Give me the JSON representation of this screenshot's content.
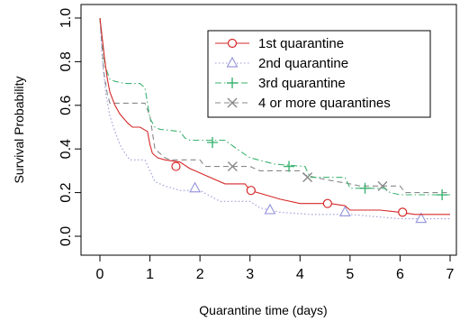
{
  "chart_data": {
    "type": "line",
    "title": "",
    "xlabel": "Quarantine time (days)",
    "ylabel": "Survival Probability",
    "xlim": [
      0,
      7
    ],
    "ylim": [
      0,
      1
    ],
    "xticks": [
      "0",
      "1",
      "2",
      "3",
      "4",
      "5",
      "6",
      "7"
    ],
    "yticks": [
      "0.0",
      "0.2",
      "0.4",
      "0.6",
      "0.8",
      "1.0"
    ],
    "grid": false,
    "legend_position": "top-right",
    "series": [
      {
        "name": "1st quarantine",
        "color": "#d62728",
        "dash": "solid",
        "marker": "circle",
        "points": [
          [
            0,
            1.0
          ],
          [
            0.05,
            0.9
          ],
          [
            0.1,
            0.8
          ],
          [
            0.15,
            0.72
          ],
          [
            0.2,
            0.66
          ],
          [
            0.3,
            0.6
          ],
          [
            0.4,
            0.56
          ],
          [
            0.55,
            0.52
          ],
          [
            0.65,
            0.5
          ],
          [
            0.8,
            0.5
          ],
          [
            0.95,
            0.48
          ],
          [
            1.0,
            0.42
          ],
          [
            1.05,
            0.38
          ],
          [
            1.15,
            0.36
          ],
          [
            1.3,
            0.35
          ],
          [
            1.6,
            0.34
          ],
          [
            1.8,
            0.31
          ],
          [
            1.9,
            0.3
          ],
          [
            2.1,
            0.28
          ],
          [
            2.5,
            0.24
          ],
          [
            2.9,
            0.24
          ],
          [
            3.0,
            0.21
          ],
          [
            3.3,
            0.19
          ],
          [
            3.6,
            0.17
          ],
          [
            4.0,
            0.15
          ],
          [
            4.6,
            0.15
          ],
          [
            4.9,
            0.14
          ],
          [
            5.0,
            0.12
          ],
          [
            5.6,
            0.12
          ],
          [
            6.0,
            0.11
          ],
          [
            6.3,
            0.1
          ],
          [
            7.0,
            0.1
          ]
        ],
        "markers": [
          [
            1.52,
            0.32
          ],
          [
            3.02,
            0.21
          ],
          [
            4.55,
            0.15
          ],
          [
            6.05,
            0.11
          ]
        ]
      },
      {
        "name": "2nd quarantine",
        "color": "#9999dd",
        "dash": "dotted",
        "marker": "triangle",
        "points": [
          [
            0,
            1.0
          ],
          [
            0.05,
            0.8
          ],
          [
            0.12,
            0.65
          ],
          [
            0.2,
            0.55
          ],
          [
            0.3,
            0.48
          ],
          [
            0.4,
            0.42
          ],
          [
            0.5,
            0.38
          ],
          [
            0.6,
            0.35
          ],
          [
            0.9,
            0.35
          ],
          [
            1.0,
            0.3
          ],
          [
            1.1,
            0.25
          ],
          [
            1.3,
            0.23
          ],
          [
            1.6,
            0.21
          ],
          [
            2.0,
            0.21
          ],
          [
            2.4,
            0.16
          ],
          [
            3.0,
            0.16
          ],
          [
            3.2,
            0.13
          ],
          [
            3.6,
            0.11
          ],
          [
            4.2,
            0.1
          ],
          [
            5.0,
            0.1
          ],
          [
            5.5,
            0.09
          ],
          [
            6.0,
            0.08
          ],
          [
            7.0,
            0.08
          ]
        ],
        "markers": [
          [
            1.9,
            0.22
          ],
          [
            3.4,
            0.12
          ],
          [
            4.9,
            0.11
          ],
          [
            6.42,
            0.08
          ]
        ]
      },
      {
        "name": "3rd quarantine",
        "color": "#3cb371",
        "dash": "dashdot",
        "marker": "plus",
        "points": [
          [
            0,
            1.0
          ],
          [
            0.1,
            0.78
          ],
          [
            0.2,
            0.72
          ],
          [
            0.3,
            0.71
          ],
          [
            0.5,
            0.7
          ],
          [
            0.8,
            0.7
          ],
          [
            0.9,
            0.68
          ],
          [
            1.0,
            0.54
          ],
          [
            1.1,
            0.5
          ],
          [
            1.2,
            0.49
          ],
          [
            1.6,
            0.48
          ],
          [
            1.7,
            0.45
          ],
          [
            1.8,
            0.44
          ],
          [
            2.5,
            0.44
          ],
          [
            2.8,
            0.39
          ],
          [
            3.0,
            0.36
          ],
          [
            3.5,
            0.33
          ],
          [
            4.1,
            0.32
          ],
          [
            4.2,
            0.27
          ],
          [
            4.9,
            0.27
          ],
          [
            5.0,
            0.22
          ],
          [
            5.7,
            0.22
          ],
          [
            5.8,
            0.2
          ],
          [
            6.0,
            0.19
          ],
          [
            7.0,
            0.19
          ]
        ],
        "markers": [
          [
            2.25,
            0.43
          ],
          [
            3.78,
            0.32
          ],
          [
            5.3,
            0.22
          ],
          [
            6.84,
            0.19
          ]
        ]
      },
      {
        "name": "4 or more quarantines",
        "color": "#888888",
        "dash": "dashed",
        "marker": "x",
        "points": [
          [
            0,
            1.0
          ],
          [
            0.08,
            0.75
          ],
          [
            0.15,
            0.65
          ],
          [
            0.2,
            0.61
          ],
          [
            0.9,
            0.61
          ],
          [
            1.0,
            0.55
          ],
          [
            1.1,
            0.4
          ],
          [
            1.3,
            0.36
          ],
          [
            1.4,
            0.35
          ],
          [
            2.0,
            0.35
          ],
          [
            2.1,
            0.32
          ],
          [
            3.0,
            0.32
          ],
          [
            3.2,
            0.3
          ],
          [
            4.0,
            0.3
          ],
          [
            4.1,
            0.28
          ],
          [
            4.5,
            0.26
          ],
          [
            5.0,
            0.24
          ],
          [
            5.2,
            0.23
          ],
          [
            6.0,
            0.23
          ],
          [
            6.1,
            0.2
          ],
          [
            7.0,
            0.2
          ]
        ],
        "markers": [
          [
            2.65,
            0.32
          ],
          [
            4.15,
            0.27
          ],
          [
            5.65,
            0.23
          ]
        ]
      }
    ]
  }
}
